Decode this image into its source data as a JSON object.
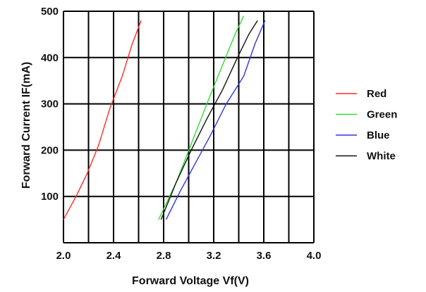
{
  "chart_data": {
    "type": "line",
    "xlabel": "Forward Voltage Vf(V)",
    "ylabel": "Forward Current IF(mA)",
    "xlim": [
      2.0,
      4.0
    ],
    "ylim": [
      0,
      500
    ],
    "x_ticks": [
      "2.0",
      "2.4",
      "2.8",
      "3.2",
      "3.6",
      "4.0"
    ],
    "y_ticks": [
      "100",
      "200",
      "300",
      "400",
      "500"
    ],
    "grid": "on",
    "legend_position": "right",
    "series": [
      {
        "name": "Red",
        "color": "#ff2a2a",
        "points": [
          [
            2.0,
            50
          ],
          [
            2.1,
            100
          ],
          [
            2.19,
            150
          ],
          [
            2.28,
            210
          ],
          [
            2.37,
            290
          ],
          [
            2.47,
            360
          ],
          [
            2.55,
            430
          ],
          [
            2.62,
            480
          ]
        ]
      },
      {
        "name": "Green",
        "color": "#33dd33",
        "points": [
          [
            2.76,
            50
          ],
          [
            2.9,
            130
          ],
          [
            3.03,
            220
          ],
          [
            3.16,
            310
          ],
          [
            3.28,
            390
          ],
          [
            3.37,
            450
          ],
          [
            3.44,
            490
          ]
        ]
      },
      {
        "name": "Blue",
        "color": "#3333dd",
        "points": [
          [
            2.82,
            50
          ],
          [
            2.93,
            110
          ],
          [
            3.05,
            170
          ],
          [
            3.17,
            230
          ],
          [
            3.3,
            300
          ],
          [
            3.44,
            360
          ],
          [
            3.53,
            430
          ],
          [
            3.61,
            480
          ]
        ]
      },
      {
        "name": "White",
        "color": "#111111",
        "points": [
          [
            2.78,
            50
          ],
          [
            2.9,
            130
          ],
          [
            3.02,
            200
          ],
          [
            3.15,
            270
          ],
          [
            3.27,
            330
          ],
          [
            3.39,
            400
          ],
          [
            3.48,
            450
          ],
          [
            3.55,
            480
          ]
        ]
      }
    ]
  }
}
